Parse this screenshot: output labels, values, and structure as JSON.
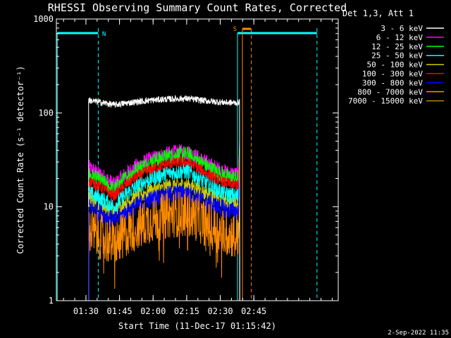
{
  "chart_data": {
    "type": "line",
    "title": "RHESSI Observing Summary Count Rates, Corrected",
    "xlabel": "Start Time (11-Dec-17 01:15:42)",
    "ylabel": "Corrected Count Rate (s⁻¹ detector⁻¹)",
    "yscale": "log",
    "ylim": [
      1,
      1000
    ],
    "xlim_minutes": [
      1.1,
      127.0
    ],
    "x_ticks": [
      "01:30",
      "01:45",
      "02:00",
      "02:15",
      "02:30",
      "02:45"
    ],
    "y_ticks": [
      "1",
      "10",
      "100",
      "1000"
    ],
    "legend_header": "Det 1,3, Att 1",
    "legend_position": "right",
    "grid": false,
    "timestamp": "2-Sep-2022 11:35",
    "annotations": [
      {
        "text": "N",
        "color": "#00ffff"
      },
      {
        "text": "S",
        "color": "#ff8c00"
      }
    ],
    "series": [
      {
        "name": "3 - 6 keV",
        "color": "#ffffff",
        "values_at_times": {
          "t_start": 15.5,
          "t_end": 82.5,
          "start": 136,
          "min": 122,
          "peak": 142,
          "end": 128
        }
      },
      {
        "name": "6 - 12 keV",
        "color": "#ff00ff",
        "values_at_times": {
          "t_start": 15.5,
          "t_end": 82.5,
          "start": 26,
          "min": 17,
          "peak": 38,
          "end": 22
        }
      },
      {
        "name": "12 - 25 keV",
        "color": "#00ff00",
        "values_at_times": {
          "t_start": 15.5,
          "t_end": 82.5,
          "start": 22,
          "min": 15,
          "peak": 36,
          "end": 20
        }
      },
      {
        "name": "25 - 50 keV",
        "color": "#00ffff",
        "values_at_times": {
          "t_start": 15.5,
          "t_end": 82.5,
          "start": 14,
          "min": 10,
          "peak": 24,
          "end": 13
        }
      },
      {
        "name": "50 - 100 keV",
        "color": "#cccc00",
        "values_at_times": {
          "t_start": 15.5,
          "t_end": 82.5,
          "start": 12,
          "min": 9,
          "peak": 17,
          "end": 11
        }
      },
      {
        "name": "100 - 300 keV",
        "color": "#ff0000",
        "values_at_times": {
          "t_start": 15.5,
          "t_end": 82.5,
          "start": 19,
          "min": 13,
          "peak": 30,
          "end": 17
        }
      },
      {
        "name": "300 - 800 keV",
        "color": "#0000ff",
        "values_at_times": {
          "t_start": 15.5,
          "t_end": 82.5,
          "start": 10,
          "min": 7,
          "peak": 14,
          "end": 9
        }
      },
      {
        "name": "800 - 7000 keV",
        "color": "#ff8c00",
        "values_at_times": {
          "t_start": 15.5,
          "t_end": 82.5,
          "start": 5.5,
          "min": 4,
          "peak": 8.5,
          "end": 5
        }
      },
      {
        "name": "7000 - 15000 keV",
        "color": "#b8860b",
        "values_at_times": {
          "t_start": 15.5,
          "t_end": 82.5,
          "start": 0,
          "min": 0,
          "peak": 0,
          "end": 0
        }
      }
    ]
  }
}
